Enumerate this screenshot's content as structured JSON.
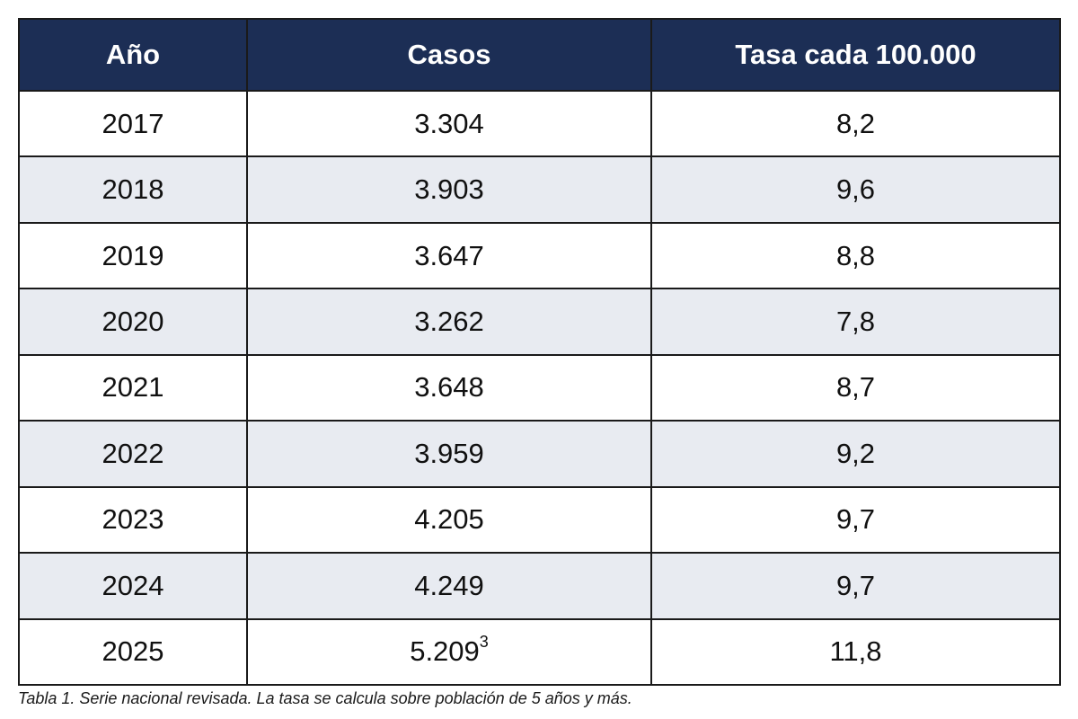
{
  "table": {
    "headers": [
      "Año",
      "Casos",
      "Tasa cada 100.000"
    ],
    "rows": [
      {
        "year": "2017",
        "cases": "3.304",
        "footnote": "",
        "rate": "8,2"
      },
      {
        "year": "2018",
        "cases": "3.903",
        "footnote": "",
        "rate": "9,6"
      },
      {
        "year": "2019",
        "cases": "3.647",
        "footnote": "",
        "rate": "8,8"
      },
      {
        "year": "2020",
        "cases": "3.262",
        "footnote": "",
        "rate": "7,8"
      },
      {
        "year": "2021",
        "cases": "3.648",
        "footnote": "",
        "rate": "8,7"
      },
      {
        "year": "2022",
        "cases": "3.959",
        "footnote": "",
        "rate": "9,2"
      },
      {
        "year": "2023",
        "cases": "4.205",
        "footnote": "",
        "rate": "9,7"
      },
      {
        "year": "2024",
        "cases": "4.249",
        "footnote": "",
        "rate": "9,7"
      },
      {
        "year": "2025",
        "cases": "5.209",
        "footnote": "3",
        "rate": "11,8"
      }
    ]
  },
  "caption": "Tabla 1. Serie nacional revisada. La tasa se calcula sobre población de 5 años y más.",
  "colors": {
    "header_bg": "#1c2e55",
    "header_text": "#ffffff",
    "shaded_row_bg": "#e8ebf1",
    "border": "#1a1a1a"
  }
}
